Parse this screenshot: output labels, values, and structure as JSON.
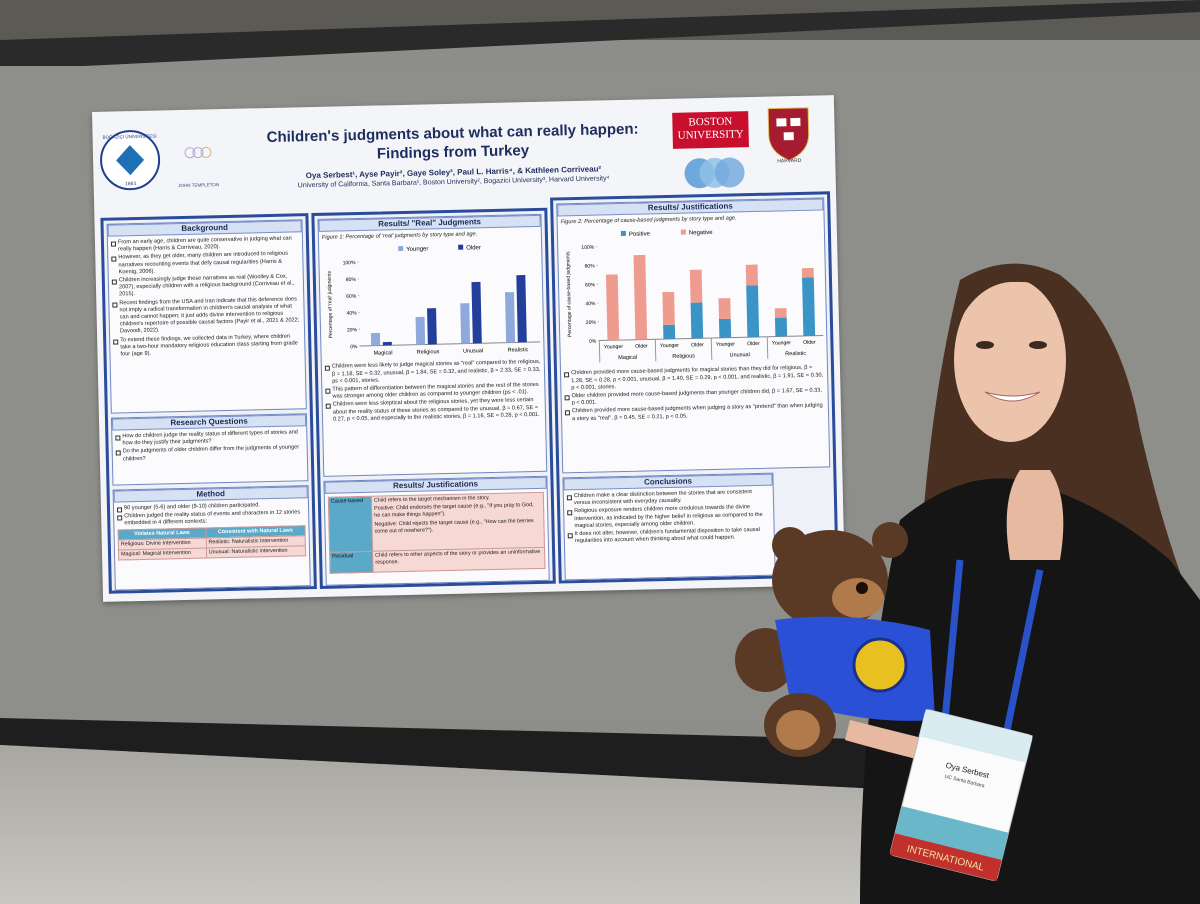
{
  "poster": {
    "seal": {
      "name": "BOĞAZİÇİ ÜNİVERSİTESİ",
      "year": "1863"
    },
    "sponsor": "JOHN TEMPLETON",
    "university": "BOSTON UNIVERSITY",
    "harvard": "HARVARD",
    "title_line1": "Children's judgments about what can really happen:",
    "title_line2": "Findings from Turkey",
    "authors": "Oya Serbest¹, Ayse Payir², Gaye Soley³, Paul L. Harris⁴, & Kathleen Corriveau²",
    "affiliations": "University of California, Santa Barbara¹, Boston University², Bogazici University³, Harvard University⁴",
    "background": {
      "heading": "Background",
      "items": [
        "From an early age, children are quite conservative in judging what can really happen (Harris & Corriveau, 2020).",
        "However, as they get older, many children are introduced to religious narratives recounting events that defy causal regularities (Harris & Koenig, 2006).",
        "Children increasingly judge these narratives as real (Woolley & Cox, 2007), especially children with a religious background (Corriveau et al., 2015).",
        "Recent findings from the USA and Iran indicate that this deference does not imply a radical transformation in children's causal analysis of what can and cannot happen; it just adds divine intervention to religious children's repertoire of possible causal factors (Payir et al., 2021 & 2022; Davoodi, 2022).",
        "To extend these findings, we collected data in Turkey, where children take a two-hour mandatory religious education class starting from grade four (age 9)."
      ]
    },
    "research_questions": {
      "heading": "Research Questions",
      "items": [
        "How do children judge the reality status of different types of stories and how do they justify their judgments?",
        "Do the judgments of older children differ from the judgments of younger children?"
      ]
    },
    "method": {
      "heading": "Method",
      "items": [
        "90 younger (5-6) and older (9-10) children participated.",
        "Children judged the reality status of events and characters in 12 stories embedded in 4 different contexts:"
      ],
      "table": {
        "headers": [
          "Violates Natural Laws",
          "Consistent with Natural Laws"
        ],
        "rows": [
          [
            "Religious: Divine Intervention",
            "Realistic: Naturalistic Intervention"
          ],
          [
            "Magical: Magical Intervention",
            "Unusual: Naturalistic intervention"
          ]
        ]
      }
    },
    "results_real": {
      "heading": "Results/ \"Real\" Judgments",
      "figure": {
        "type": "bar",
        "caption": "Figure 1: Percentage of 'real' judgments by story type and age.",
        "ylabel": "Percentage of 'real' judgments",
        "categories": [
          "Magical",
          "Religious",
          "Unusual",
          "Realistic"
        ],
        "series": [
          {
            "name": "Younger",
            "color": "#8fa9dc",
            "values": [
              15,
              33,
              48,
              60
            ]
          },
          {
            "name": "Older",
            "color": "#213f9b",
            "values": [
              4,
              43,
              73,
              80
            ]
          }
        ],
        "ylim": [
          0,
          100
        ],
        "yticks": [
          {
            "value": 0,
            "label": "0%"
          },
          {
            "value": 20,
            "label": "20%"
          },
          {
            "value": 40,
            "label": "40%"
          },
          {
            "value": 60,
            "label": "60%"
          },
          {
            "value": 80,
            "label": "80%"
          },
          {
            "value": 100,
            "label": "100%"
          }
        ]
      },
      "items": [
        "Children were less likely to judge magical stories as \"real\" compared to the religious, β = 1.18, SE = 0.32, unusual, β = 1.84, SE = 0.32, and realistic, β = 2.33, SE = 0.33, ps < 0.001, stories.",
        "This pattern of differentiation between the magical stories and the rest of the stories was stronger among older children as compared to younger children (ps < .01).",
        "Children were less skeptical about the religious stories, yet they were less certain about the reality status of these stories as compared to the unusual, β = 0.67, SE = 0.27, p < 0.05, and especially to the realistic stories, β = 1.16, SE = 0.28, p < 0.001."
      ]
    },
    "justification_table": {
      "heading": "Results/ Justifications",
      "rows": [
        {
          "label": "Cause-based",
          "lines": [
            "Child refers to the target mechanism in the story.",
            "Positive: Child endorses the target cause (e.g., \"If you pray to God, he can make things happen\").",
            "Negative: Child rejects the target cause (e.g., \"How can the berries come out of nowhere?\")."
          ]
        },
        {
          "label": "Residual",
          "lines": [
            "Child refers to other aspects of the story or provides an uninformative response."
          ]
        }
      ]
    },
    "results_just": {
      "heading": "Results/ Justifications",
      "figure": {
        "type": "stacked_bar",
        "caption": "Figure 2: Percentage of cause-based judgments by story type and age.",
        "ylabel": "Percentage of cause-based judgments",
        "groups": [
          "Magical",
          "Religious",
          "Unusual",
          "Realistic"
        ],
        "subgroups": [
          "Younger",
          "Older"
        ],
        "series": [
          {
            "name": "Positive",
            "color": "#3a94c6",
            "values": [
              0,
              0,
              15,
              38,
              20,
              55,
              20,
              62
            ]
          },
          {
            "name": "Negative",
            "color": "#ef9c90",
            "values": [
              70,
              90,
              35,
              35,
              22,
              22,
              10,
              10
            ]
          }
        ],
        "ylim": [
          0,
          100
        ],
        "yticks": [
          {
            "value": 0,
            "label": "0%"
          },
          {
            "value": 20,
            "label": "20%"
          },
          {
            "value": 40,
            "label": "40%"
          },
          {
            "value": 60,
            "label": "60%"
          },
          {
            "value": 80,
            "label": "80%"
          },
          {
            "value": 100,
            "label": "100%"
          }
        ]
      },
      "items": [
        "Children provided more cause-based judgments for magical stories than they did for religious, β = 1.28, SE = 0.28, p < 0.001, unusual, β = 1.40, SE = 0.29, p < 0.001, and realistic, β = 1.91, SE = 0.30, p < 0.001, stories.",
        "Older children provided more cause-based judgments than younger children did, β = 1.67, SE = 0.33, p < 0.001.",
        "Children provided more cause-based judgments when judging a story as \"pretend\" than when judging a story as \"real\", β = 0.45, SE = 0.21, p < 0.05."
      ]
    },
    "conclusions": {
      "heading": "Conclusions",
      "items": [
        "Children make a clear distinction between the stories that are consistent versus inconsistent with everyday causality.",
        "Religious exposure renders children more credulous towards the divine intervention, as indicated by the higher belief in religious as compared to the magical stories, especially among older children.",
        "It does not alter, however, children's fundamental disposition to take causal regularities into account when thinking about what could happen."
      ]
    }
  },
  "badge": {
    "name": "Oya Serbest",
    "affiliation": "UC Santa Barbara",
    "ribbon": "INTERNATIONAL"
  }
}
